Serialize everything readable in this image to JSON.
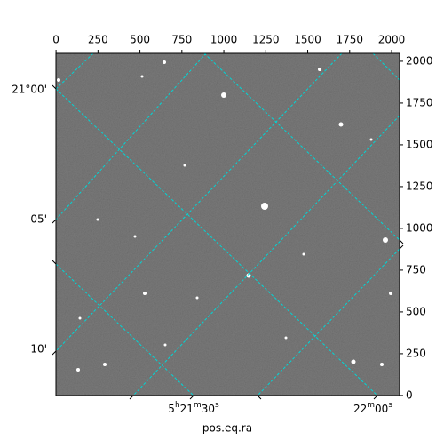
{
  "chart_data": {
    "type": "image",
    "xlabel": "pos.eq.ra",
    "xlim": [
      -0.5,
      2047.5
    ],
    "xticks": [
      0,
      250,
      500,
      750,
      1000,
      1250,
      1500,
      1750,
      2000
    ],
    "ylim": [
      -0.5,
      2047.5
    ],
    "yticks": [
      0,
      250,
      500,
      750,
      1000,
      1250,
      1500,
      1750,
      2000
    ],
    "ra_ticks": [
      "5h21m30s",
      "22m00s"
    ],
    "dec_ticks": [
      "21°00'",
      "05'",
      "10'"
    ],
    "grid_color": "#00d6d6"
  }
}
